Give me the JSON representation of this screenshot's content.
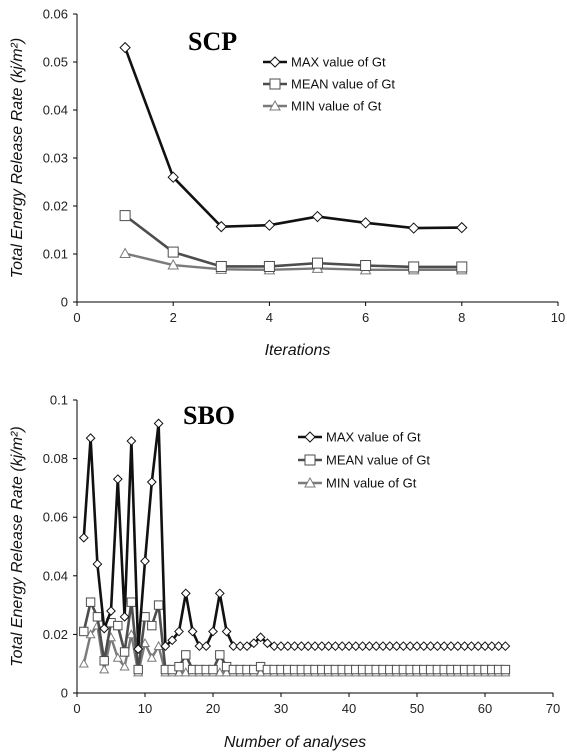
{
  "colors": {
    "max": "#111111",
    "mean": "#4d4d4d",
    "min": "#7a7a7a",
    "marker_fill": "#ffffff",
    "axis": "#000000"
  },
  "chart_data": [
    {
      "type": "line",
      "title": "SCP",
      "xlabel": "Iterations",
      "ylabel": "Total Energy Release Rate (kj/m²)",
      "xlim": [
        0,
        10
      ],
      "ylim": [
        0,
        0.06
      ],
      "xticks": [
        0,
        2,
        4,
        6,
        8,
        10
      ],
      "yticks": [
        0,
        0.01,
        0.02,
        0.03,
        0.04,
        0.05,
        0.06
      ],
      "xtick_labels": [
        "0",
        "2",
        "4",
        "6",
        "8",
        "10"
      ],
      "ytick_labels": [
        "0",
        "0.01",
        "0.02",
        "0.03",
        "0.04",
        "0.05",
        "0.06"
      ],
      "legend_position": "top-right",
      "series": [
        {
          "name": "MAX value of Gt",
          "marker": "diamond",
          "x": [
            1,
            2,
            3,
            4,
            5,
            6,
            7,
            8
          ],
          "values": [
            0.053,
            0.026,
            0.0157,
            0.016,
            0.0178,
            0.0165,
            0.0154,
            0.0155
          ]
        },
        {
          "name": "MEAN value of Gt",
          "marker": "square",
          "x": [
            1,
            2,
            3,
            4,
            5,
            6,
            7,
            8
          ],
          "values": [
            0.018,
            0.0104,
            0.0074,
            0.0074,
            0.0081,
            0.0076,
            0.0073,
            0.0073
          ]
        },
        {
          "name": "MIN value of Gt",
          "marker": "triangle",
          "x": [
            1,
            2,
            3,
            4,
            5,
            6,
            7,
            8
          ],
          "values": [
            0.0101,
            0.0077,
            0.0068,
            0.0067,
            0.007,
            0.0067,
            0.0067,
            0.0067
          ]
        }
      ]
    },
    {
      "type": "scatter",
      "title": "SBO",
      "xlabel": "Number of analyses",
      "ylabel": "Total Energy Release Rate (kj/m²)",
      "xlim": [
        0,
        70
      ],
      "ylim": [
        0,
        0.1
      ],
      "xticks": [
        0,
        10,
        20,
        30,
        40,
        50,
        60,
        70
      ],
      "yticks": [
        0,
        0.02,
        0.04,
        0.06,
        0.08,
        0.1
      ],
      "xtick_labels": [
        "0",
        "10",
        "20",
        "30",
        "40",
        "50",
        "60",
        "70"
      ],
      "ytick_labels": [
        "0",
        "0.02",
        "0.04",
        "0.06",
        "0.08",
        "0.1"
      ],
      "legend_position": "top-right",
      "series": [
        {
          "name": "MAX value of Gt",
          "marker": "diamond",
          "x": [
            1,
            2,
            3,
            4,
            5,
            6,
            7,
            8,
            9,
            10,
            11,
            12,
            13,
            14,
            15,
            16,
            17,
            18,
            19,
            20,
            21,
            22,
            23,
            24,
            25,
            26,
            27,
            28,
            29,
            30,
            31,
            32,
            33,
            34,
            35,
            36,
            37,
            38,
            39,
            40,
            41,
            42,
            43,
            44,
            45,
            46,
            47,
            48,
            49,
            50,
            51,
            52,
            53,
            54,
            55,
            56,
            57,
            58,
            59,
            60,
            61,
            62,
            63
          ],
          "values": [
            0.053,
            0.087,
            0.044,
            0.022,
            0.028,
            0.073,
            0.026,
            0.086,
            0.015,
            0.045,
            0.072,
            0.092,
            0.016,
            0.018,
            0.021,
            0.034,
            0.021,
            0.016,
            0.016,
            0.021,
            0.034,
            0.021,
            0.016,
            0.016,
            0.016,
            0.017,
            0.019,
            0.017,
            0.016,
            0.016,
            0.016,
            0.016,
            0.016,
            0.016,
            0.016,
            0.016,
            0.016,
            0.016,
            0.016,
            0.016,
            0.016,
            0.016,
            0.016,
            0.016,
            0.016,
            0.016,
            0.016,
            0.016,
            0.016,
            0.016,
            0.016,
            0.016,
            0.016,
            0.016,
            0.016,
            0.016,
            0.016,
            0.016,
            0.016,
            0.016,
            0.016,
            0.016,
            0.016
          ]
        },
        {
          "name": "MEAN value of Gt",
          "marker": "square",
          "x": [
            1,
            2,
            3,
            4,
            5,
            6,
            7,
            8,
            9,
            10,
            11,
            12,
            13,
            14,
            15,
            16,
            17,
            18,
            19,
            20,
            21,
            22,
            23,
            24,
            25,
            26,
            27,
            28,
            29,
            30,
            31,
            32,
            33,
            34,
            35,
            36,
            37,
            38,
            39,
            40,
            41,
            42,
            43,
            44,
            45,
            46,
            47,
            48,
            49,
            50,
            51,
            52,
            53,
            54,
            55,
            56,
            57,
            58,
            59,
            60,
            61,
            62,
            63
          ],
          "values": [
            0.021,
            0.031,
            0.026,
            0.011,
            0.024,
            0.023,
            0.014,
            0.031,
            0.008,
            0.026,
            0.023,
            0.03,
            0.008,
            0.008,
            0.009,
            0.013,
            0.008,
            0.008,
            0.008,
            0.008,
            0.013,
            0.009,
            0.008,
            0.008,
            0.008,
            0.008,
            0.009,
            0.008,
            0.008,
            0.008,
            0.008,
            0.008,
            0.008,
            0.008,
            0.008,
            0.008,
            0.008,
            0.008,
            0.008,
            0.008,
            0.008,
            0.008,
            0.008,
            0.008,
            0.008,
            0.008,
            0.008,
            0.008,
            0.008,
            0.008,
            0.008,
            0.008,
            0.008,
            0.008,
            0.008,
            0.008,
            0.008,
            0.008,
            0.008,
            0.008,
            0.008,
            0.008,
            0.008
          ]
        },
        {
          "name": "MIN value of Gt",
          "marker": "triangle",
          "x": [
            1,
            2,
            3,
            4,
            5,
            6,
            7,
            8,
            9,
            10,
            11,
            12,
            13,
            14,
            15,
            16,
            17,
            18,
            19,
            20,
            21,
            22,
            23,
            24,
            25,
            26,
            27,
            28,
            29,
            30,
            31,
            32,
            33,
            34,
            35,
            36,
            37,
            38,
            39,
            40,
            41,
            42,
            43,
            44,
            45,
            46,
            47,
            48,
            49,
            50,
            51,
            52,
            53,
            54,
            55,
            56,
            57,
            58,
            59,
            60,
            61,
            62,
            63
          ],
          "values": [
            0.01,
            0.02,
            0.023,
            0.008,
            0.019,
            0.012,
            0.009,
            0.02,
            0.007,
            0.017,
            0.012,
            0.016,
            0.007,
            0.007,
            0.007,
            0.007,
            0.007,
            0.007,
            0.007,
            0.007,
            0.007,
            0.007,
            0.007,
            0.007,
            0.007,
            0.007,
            0.007,
            0.007,
            0.007,
            0.007,
            0.007,
            0.007,
            0.007,
            0.007,
            0.007,
            0.007,
            0.007,
            0.007,
            0.007,
            0.007,
            0.007,
            0.007,
            0.007,
            0.007,
            0.007,
            0.007,
            0.007,
            0.007,
            0.007,
            0.007,
            0.007,
            0.007,
            0.007,
            0.007,
            0.007,
            0.007,
            0.007,
            0.007,
            0.007,
            0.007,
            0.007,
            0.007,
            0.007
          ]
        }
      ]
    }
  ]
}
